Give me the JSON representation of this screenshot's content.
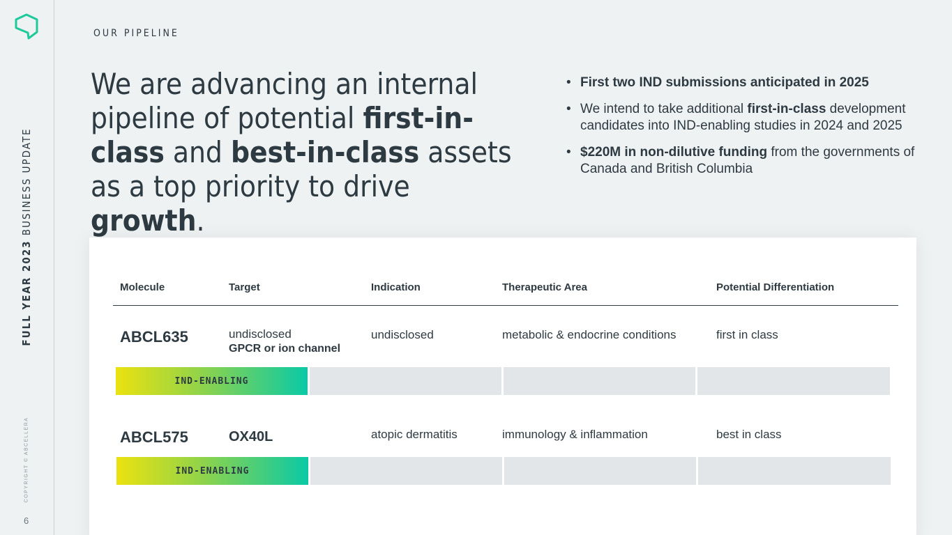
{
  "sidebar": {
    "title_bold": "FULL YEAR 2023",
    "title_rest": " BUSINESS UPDATE",
    "copyright": "COPYRIGHT © ABCELLERA",
    "page_number": "6"
  },
  "eyebrow": "OUR PIPELINE",
  "headline": {
    "p1": "We are advancing an internal pipeline of potential ",
    "b1": "first-in-class",
    "p2": " and ",
    "b2": "best-in-class",
    "p3": " assets as a top priority to drive ",
    "b3": "growth",
    "p4": "."
  },
  "bullets": [
    {
      "bold": "First two IND submissions anticipated in 2025"
    },
    {
      "pre": "We intend to take additional ",
      "bold": "first-in-class",
      "post": " development candidates into IND-enabling studies in 2024 and 2025"
    },
    {
      "bold": "$220M in non-dilutive funding",
      "post": " from the governments of Canada and British Columbia"
    }
  ],
  "table": {
    "headers": [
      "Molecule",
      "Target",
      "Indication",
      "Therapeutic Area",
      "Potential Differentiation"
    ],
    "rows": [
      {
        "molecule": "ABCL635",
        "target": "undisclosed",
        "target_sub": "GPCR or ion channel",
        "indication": "undisclosed",
        "area": "metabolic & endocrine conditions",
        "differentiation": "first in class",
        "stage": "IND-ENABLING"
      },
      {
        "molecule": "ABCL575",
        "target": "OX40L",
        "target_sub": "",
        "indication": "atopic dermatitis",
        "area": "immunology & inflammation",
        "differentiation": "best in class",
        "stage": "IND-ENABLING"
      }
    ]
  },
  "colors": {
    "background": "#eef2f3",
    "text": "#2e3a42",
    "brand_green": "#1ec99b",
    "gradient_start": "#ebe20f",
    "gradient_end": "#0ac9a6",
    "stage_empty": "#e2e6e9"
  },
  "icons": {
    "logo": "hexagon-outline-logo-icon"
  }
}
